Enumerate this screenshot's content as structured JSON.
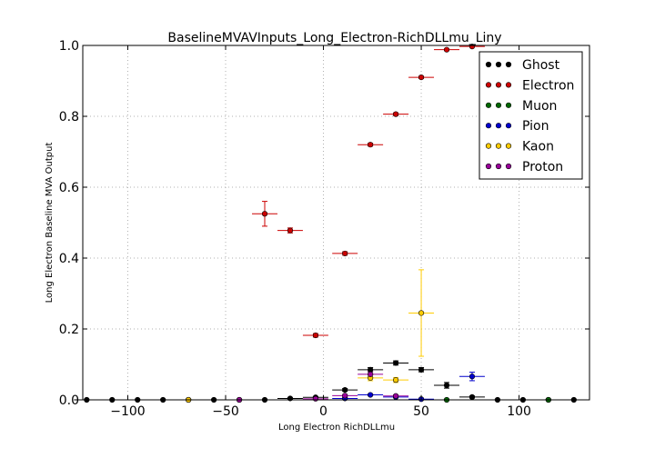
{
  "chart_data": {
    "type": "scatter",
    "title": "BaselineMVAVInputs_Long_Electron-RichDLLmu_Liny",
    "xlabel": "Long Electron RichDLLmu",
    "ylabel": "Long Electron Baseline MVA Output",
    "xlim": [
      -123,
      136
    ],
    "ylim": [
      0.0,
      1.0
    ],
    "xticks": [
      -100,
      -50,
      0,
      50,
      100
    ],
    "xtick_labels": [
      "−100",
      "−50",
      "0",
      "50",
      "100"
    ],
    "yticks": [
      0.0,
      0.2,
      0.4,
      0.6,
      0.8,
      1.0
    ],
    "ytick_labels": [
      "0.0",
      "0.2",
      "0.4",
      "0.6",
      "0.8",
      "1.0"
    ],
    "grid": true,
    "legend_position": "top-right",
    "x_halfwidth": 6.5,
    "series": [
      {
        "name": "Ghost",
        "color": "#000000",
        "points": [
          {
            "x": -121,
            "y": 0.0,
            "yerr": 0.0
          },
          {
            "x": -108,
            "y": 0.0,
            "yerr": 0.0
          },
          {
            "x": -95,
            "y": 0.0,
            "yerr": 0.0
          },
          {
            "x": -82,
            "y": 0.0,
            "yerr": 0.0
          },
          {
            "x": -69,
            "y": 0.0,
            "yerr": 0.0
          },
          {
            "x": -56,
            "y": 0.0,
            "yerr": 0.0
          },
          {
            "x": -43,
            "y": 0.0,
            "yerr": 0.0
          },
          {
            "x": -30,
            "y": 0.0,
            "yerr": 0.0
          },
          {
            "x": -17,
            "y": 0.004,
            "yerr": 0.002
          },
          {
            "x": -4,
            "y": 0.007,
            "yerr": 0.002
          },
          {
            "x": 11,
            "y": 0.028,
            "yerr": 0.004
          },
          {
            "x": 24,
            "y": 0.085,
            "yerr": 0.006
          },
          {
            "x": 37,
            "y": 0.104,
            "yerr": 0.006
          },
          {
            "x": 50,
            "y": 0.085,
            "yerr": 0.006
          },
          {
            "x": 63,
            "y": 0.041,
            "yerr": 0.008
          },
          {
            "x": 76,
            "y": 0.008,
            "yerr": 0.003
          },
          {
            "x": 89,
            "y": 0.0,
            "yerr": 0.0
          },
          {
            "x": 102,
            "y": 0.0,
            "yerr": 0.0
          },
          {
            "x": 115,
            "y": 0.0,
            "yerr": 0.0
          },
          {
            "x": 128,
            "y": 0.0,
            "yerr": 0.0
          }
        ]
      },
      {
        "name": "Electron",
        "color": "#cc0000",
        "points": [
          {
            "x": -30,
            "y": 0.525,
            "yerr": 0.035
          },
          {
            "x": -17,
            "y": 0.478,
            "yerr": 0.007
          },
          {
            "x": -4,
            "y": 0.182,
            "yerr": 0.005
          },
          {
            "x": 11,
            "y": 0.413,
            "yerr": 0.005
          },
          {
            "x": 24,
            "y": 0.72,
            "yerr": 0.004
          },
          {
            "x": 37,
            "y": 0.806,
            "yerr": 0.004
          },
          {
            "x": 50,
            "y": 0.91,
            "yerr": 0.003
          },
          {
            "x": 63,
            "y": 0.988,
            "yerr": 0.002
          },
          {
            "x": 76,
            "y": 0.997,
            "yerr": 0.001
          }
        ]
      },
      {
        "name": "Muon",
        "color": "#006600",
        "points": [
          {
            "x": 63,
            "y": 0.0,
            "yerr": 0.0
          },
          {
            "x": 115,
            "y": 0.0,
            "yerr": 0.0
          }
        ]
      },
      {
        "name": "Pion",
        "color": "#0000cc",
        "points": [
          {
            "x": 11,
            "y": 0.004,
            "yerr": 0.002
          },
          {
            "x": 24,
            "y": 0.014,
            "yerr": 0.002
          },
          {
            "x": 37,
            "y": 0.008,
            "yerr": 0.002
          },
          {
            "x": 50,
            "y": 0.002,
            "yerr": 0.001
          },
          {
            "x": 76,
            "y": 0.066,
            "yerr": 0.012
          }
        ]
      },
      {
        "name": "Kaon",
        "color": "#ffcc00",
        "points": [
          {
            "x": -69,
            "y": 0.0,
            "yerr": 0.0
          },
          {
            "x": 24,
            "y": 0.062,
            "yerr": 0.008
          },
          {
            "x": 37,
            "y": 0.056,
            "yerr": 0.007
          },
          {
            "x": 50,
            "y": 0.245,
            "yerr": 0.122
          }
        ]
      },
      {
        "name": "Proton",
        "color": "#990099",
        "points": [
          {
            "x": -43,
            "y": 0.0,
            "yerr": 0.0
          },
          {
            "x": -4,
            "y": 0.003,
            "yerr": 0.002
          },
          {
            "x": 11,
            "y": 0.012,
            "yerr": 0.003
          },
          {
            "x": 24,
            "y": 0.072,
            "yerr": 0.008
          },
          {
            "x": 37,
            "y": 0.011,
            "yerr": 0.003
          }
        ]
      }
    ]
  }
}
